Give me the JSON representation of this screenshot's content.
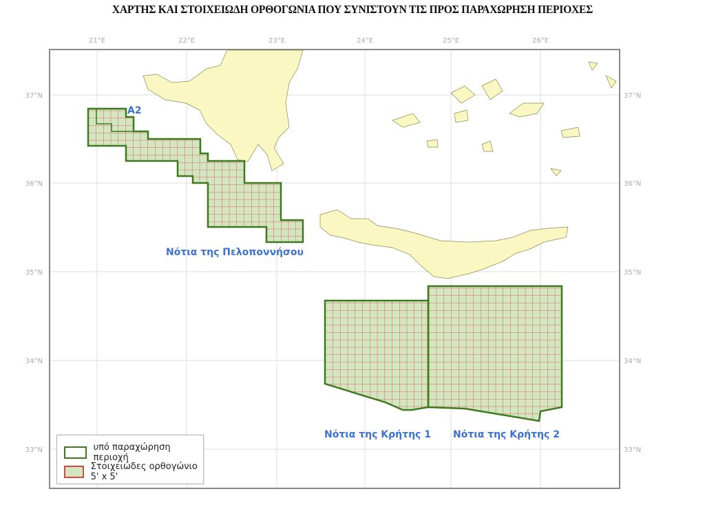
{
  "title": "ΧΑΡΤΗΣ ΚΑΙ ΣΤΟΙΧΕΙΩΔΗ ΟΡΘΟΓΩΝΙΑ ΠΟΥ ΣΥΝΙΣΤΟΥΝ ΤΙΣ ΠΡΟΣ ΠΑΡΑΧΩΡΗΣΗ ΠΕΡΙΟΧΕΣ",
  "axes": {
    "longitude_labels": [
      "21°E",
      "22°E",
      "23°E",
      "24°E",
      "25°E",
      "26°E"
    ],
    "latitude_labels": [
      "37°N",
      "36°N",
      "35°N",
      "34°N",
      "33°N"
    ]
  },
  "areas": {
    "a2": "A2",
    "peloponnese": "Νότια της Πελοποννήσου",
    "crete1": "Νότια της Κρήτης 1",
    "crete2": "Νότια της Κρήτης 2"
  },
  "legend": {
    "concession": "υπό παραχώρηση περιοχή",
    "block": "Στοιχειώδες ορθογώνιο 5' x 5'"
  },
  "colors": {
    "land": "#fbf7c2",
    "area_fill": "#d3e6c2",
    "area_border": "#3d7a1e",
    "grid_line": "#e0413a",
    "label": "#3b72d1"
  }
}
